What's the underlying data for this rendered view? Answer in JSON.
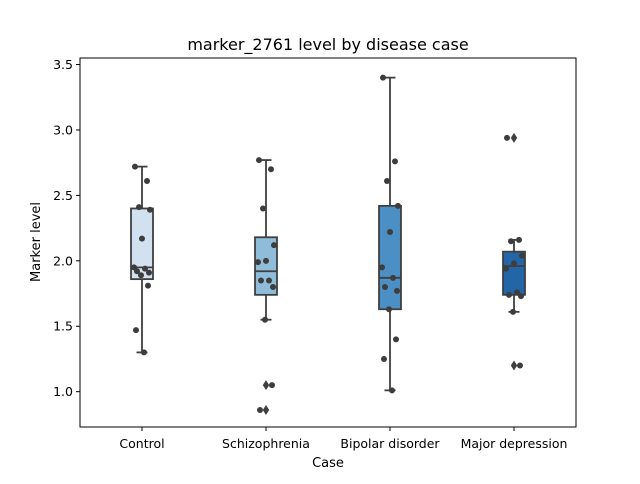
{
  "chart_data": {
    "type": "box",
    "title": "marker_2761 level by disease case",
    "xlabel": "Case",
    "ylabel": "Marker level",
    "ylim": [
      0.73,
      3.55
    ],
    "yticks": [
      "1.0",
      "1.5",
      "2.0",
      "2.5",
      "3.0",
      "3.5"
    ],
    "grid": false,
    "categories": [
      "Control",
      "Schizophrenia",
      "Bipolar disorder",
      "Major depression"
    ],
    "colors": [
      "#d2e1f0",
      "#8fbdd9",
      "#4c8fc4",
      "#2266a8"
    ],
    "boxes": [
      {
        "category": "Control",
        "whisker_low": 1.3,
        "q1": 1.86,
        "median": 1.95,
        "q3": 2.4,
        "whisker_high": 2.72,
        "outliers": []
      },
      {
        "category": "Schizophrenia",
        "whisker_low": 1.55,
        "q1": 1.74,
        "median": 1.92,
        "q3": 2.18,
        "whisker_high": 2.77,
        "outliers": [
          0.86,
          1.05
        ]
      },
      {
        "category": "Bipolar disorder",
        "whisker_low": 1.01,
        "q1": 1.63,
        "median": 1.87,
        "q3": 2.42,
        "whisker_high": 3.4,
        "outliers": []
      },
      {
        "category": "Major depression",
        "whisker_low": 1.61,
        "q1": 1.74,
        "median": 1.96,
        "q3": 2.07,
        "whisker_high": 2.16,
        "outliers": [
          1.2,
          2.94
        ]
      }
    ],
    "points": [
      {
        "category": "Control",
        "values": [
          2.72,
          2.61,
          2.41,
          2.39,
          2.17,
          1.95,
          1.94,
          1.92,
          1.91,
          1.89,
          1.81,
          1.47,
          1.3
        ]
      },
      {
        "category": "Schizophrenia",
        "values": [
          2.77,
          2.7,
          2.4,
          2.12,
          2.0,
          1.99,
          1.85,
          1.85,
          1.8,
          1.55,
          1.05,
          0.86
        ]
      },
      {
        "category": "Bipolar disorder",
        "values": [
          3.4,
          2.76,
          2.61,
          2.42,
          2.22,
          1.95,
          1.87,
          1.8,
          1.77,
          1.63,
          1.4,
          1.25,
          1.01
        ]
      },
      {
        "category": "Major depression",
        "values": [
          2.94,
          2.16,
          2.15,
          2.04,
          1.98,
          1.94,
          1.76,
          1.74,
          1.73,
          1.61,
          1.2
        ]
      }
    ]
  }
}
